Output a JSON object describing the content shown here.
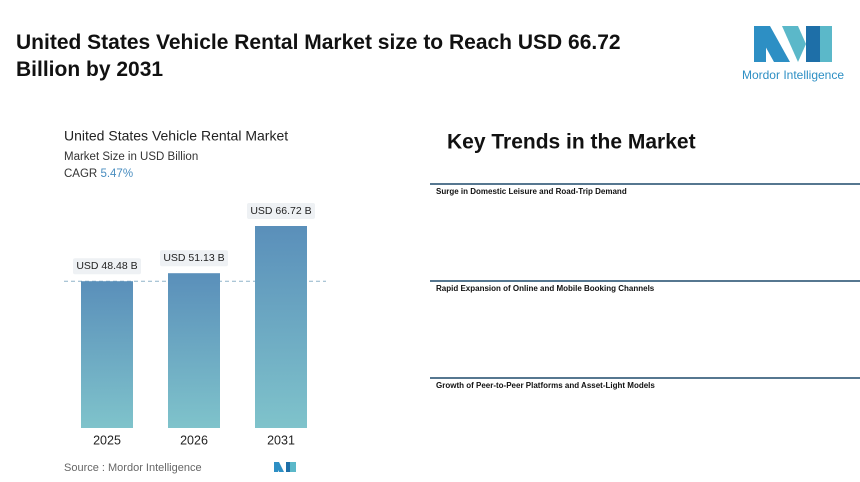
{
  "title": "United States Vehicle Rental Market size to Reach USD 66.72 Billion by 2031",
  "logo_text": "Mordor Intelligence",
  "chart_data": {
    "type": "bar",
    "title": "United States Vehicle Rental Market",
    "subtitle": "Market Size in USD Billion",
    "cagr_label": "CAGR",
    "cagr": "5.47%",
    "categories": [
      "2025",
      "2026",
      "2031"
    ],
    "values": [
      48.48,
      51.13,
      66.72
    ],
    "value_labels": [
      "USD 48.48 B",
      "USD 51.13 B",
      "USD 66.72 B"
    ],
    "source": "Source : Mordor Intelligence"
  },
  "key_trends": {
    "title": "Key Trends in the Market",
    "items": [
      "Surge in Domestic Leisure and Road-Trip Demand",
      "Rapid Expansion of Online and Mobile Booking Channels",
      "Growth of Peer-to-Peer Platforms and Asset-Light Models"
    ]
  }
}
